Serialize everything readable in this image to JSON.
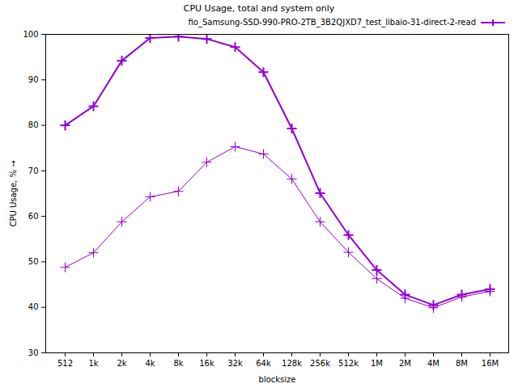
{
  "chart_data": {
    "type": "line",
    "title": "CPU Usage, total and system only",
    "x_label": "blocksize",
    "y_label": "CPU Usage, %",
    "categories": [
      "512",
      "1k",
      "2k",
      "4k",
      "8k",
      "16k",
      "32k",
      "64k",
      "128k",
      "256k",
      "512k",
      "1M",
      "2M",
      "4M",
      "8M",
      "16M"
    ],
    "series": [
      {
        "name": "fio_Samsung-SSD-990-PRO-2TB_3B2QJXD7_test_libaio-31-direct-2-read",
        "color": "#9400d3",
        "marker": "plus",
        "values": [
          80.0,
          84.2,
          94.2,
          99.2,
          99.5,
          99.0,
          97.2,
          91.7,
          79.3,
          65.1,
          55.9,
          48.2,
          42.8,
          40.5,
          42.8,
          44.0
        ]
      },
      {
        "color": "#9400d3",
        "marker": "plus",
        "values": [
          48.8,
          52.0,
          58.8,
          64.3,
          65.5,
          71.9,
          75.3,
          73.7,
          68.2,
          58.8,
          52.1,
          46.3,
          42.0,
          39.9,
          42.3,
          43.5
        ]
      }
    ],
    "ylim": [
      30,
      100
    ],
    "yticks": [
      30,
      40,
      50,
      60,
      70,
      80,
      90,
      100
    ],
    "grid": false,
    "legend": "top-right"
  }
}
